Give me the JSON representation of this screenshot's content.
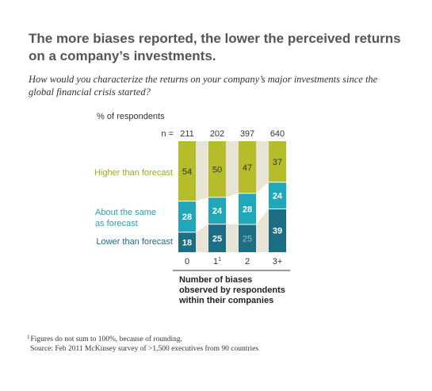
{
  "title": "The more biases reported, the lower the perceived returns on a company’s investments.",
  "question": "How would you characterize the returns on your company’s major investments since the global financial crisis started?",
  "unit_label": "% of respondents",
  "footnote": {
    "marker": "1",
    "text": "Figures do not sum to 100%, because of rounding."
  },
  "source": "Source: Feb 2011 McKinsey survey of >1,500 executives from 90 countries",
  "colors": {
    "higher": "#b5bd2a",
    "same": "#20a8ba",
    "lower": "#1d6d84",
    "connector": "#e8e4d6",
    "higher_label": "#a0a81c",
    "same_label": "#2aa0b4",
    "lower_label": "#1d6d84"
  },
  "chart_data": {
    "type": "bar",
    "stacked": true,
    "normalized": true,
    "n_prefix": "n =",
    "n_values": [
      "211",
      "202",
      "397",
      "640"
    ],
    "categories": [
      "0",
      "1",
      "2",
      "3+"
    ],
    "category_superscripts": [
      "",
      "1",
      "",
      ""
    ],
    "xlabel": "Number of biases observed by respondents within their companies",
    "xlabel_lines": [
      "Number of biases",
      "observed by respondents",
      "within their companies"
    ],
    "series": [
      {
        "name": "Lower than forecast",
        "label_lines": [
          "Lower than forecast"
        ],
        "values": [
          18,
          25,
          25,
          39
        ],
        "color_key": "lower"
      },
      {
        "name": "About the same as forecast",
        "label_lines": [
          "About the same",
          "as forecast"
        ],
        "values": [
          28,
          24,
          28,
          24
        ],
        "color_key": "same"
      },
      {
        "name": "Higher than forecast",
        "label_lines": [
          "Higher than forecast"
        ],
        "values": [
          54,
          50,
          47,
          37
        ],
        "color_key": "higher"
      }
    ]
  }
}
